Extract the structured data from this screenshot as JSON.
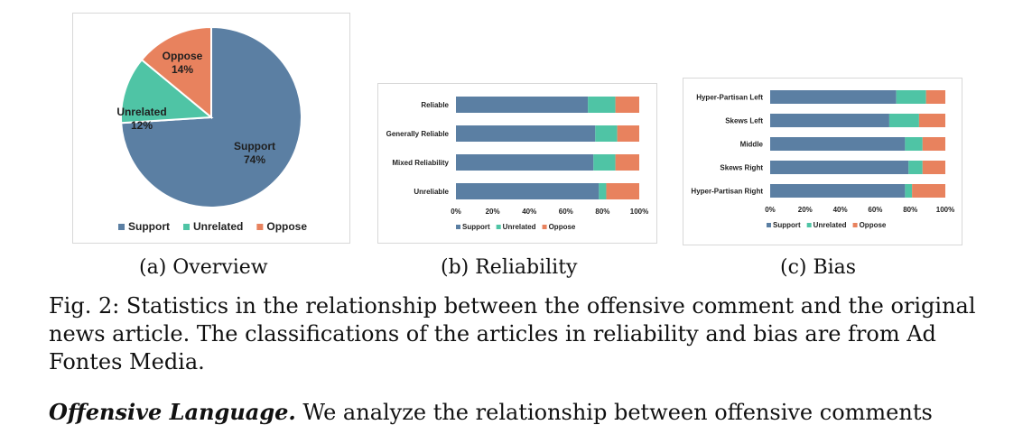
{
  "chart_data": [
    {
      "type": "pie",
      "categories": [
        "Support",
        "Unrelated",
        "Oppose"
      ],
      "values": [
        74,
        12,
        14
      ],
      "slice_labels": [
        "74%",
        "12%",
        "14%"
      ],
      "colors": [
        "#5b7fa3",
        "#4fc4a5",
        "#e8825e"
      ],
      "legend": [
        "Support",
        "Unrelated",
        "Oppose"
      ],
      "legend_position": "bottom"
    },
    {
      "type": "bar",
      "orientation": "horizontal",
      "stacked": true,
      "categories": [
        "Reliable",
        "Generally Reliable",
        "Mixed Reliability",
        "Unreliable"
      ],
      "series": [
        {
          "name": "Support",
          "values": [
            72,
            76,
            75,
            78
          ]
        },
        {
          "name": "Unrelated",
          "values": [
            15,
            12,
            12,
            4
          ]
        },
        {
          "name": "Oppose",
          "values": [
            13,
            12,
            13,
            18
          ]
        }
      ],
      "xticks": [
        "0%",
        "20%",
        "40%",
        "60%",
        "80%",
        "100%"
      ],
      "xlim": [
        0,
        100
      ],
      "legend_position": "bottom"
    },
    {
      "type": "bar",
      "orientation": "horizontal",
      "stacked": true,
      "categories": [
        "Hyper-Partisan Left",
        "Skews Left",
        "Middle",
        "Skews Right",
        "Hyper-Partisan Right"
      ],
      "series": [
        {
          "name": "Support",
          "values": [
            72,
            68,
            77,
            79,
            77
          ]
        },
        {
          "name": "Unrelated",
          "values": [
            17,
            17,
            10,
            8,
            4
          ]
        },
        {
          "name": "Oppose",
          "values": [
            11,
            15,
            13,
            13,
            19
          ]
        }
      ],
      "xticks": [
        "0%",
        "20%",
        "40%",
        "60%",
        "80%",
        "100%"
      ],
      "xlim": [
        0,
        100
      ],
      "legend_position": "bottom"
    }
  ],
  "subcaptions": [
    "(a) Overview",
    "(b) Reliability",
    "(c) Bias"
  ],
  "figure_caption": "Fig. 2: Statistics in the relationship between the offensive comment and the original news article. The classifications of the articles in reliability and bias are from Ad Fontes Media.",
  "body_text": {
    "lead": "Offensive Language.",
    "rest": " We analyze the relationship between offensive comments"
  }
}
